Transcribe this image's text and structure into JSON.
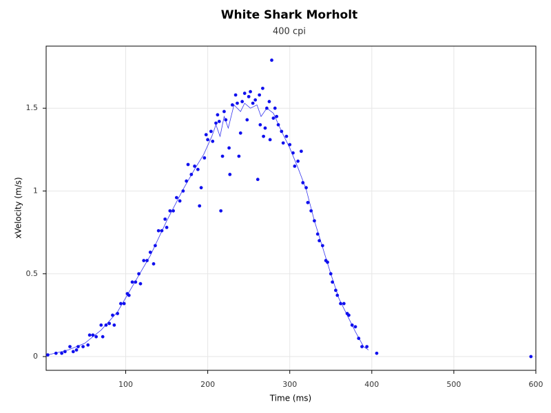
{
  "chart_data": {
    "type": "scatter",
    "title": "White Shark Morholt",
    "subtitle": "400 cpi",
    "x_label": "Time (ms)",
    "y_label": "xVelocity (m/s)",
    "xlim": [
      3,
      600
    ],
    "ylim": [
      -0.083,
      1.875
    ],
    "xticks": [
      100,
      200,
      300,
      400,
      500,
      600
    ],
    "yticks": [
      0,
      0.5,
      1,
      1.5
    ],
    "grid": true,
    "series": [
      {
        "type": "line",
        "color": "#3333ee",
        "x": [
          5,
          30,
          50,
          70,
          90,
          110,
          130,
          150,
          170,
          185,
          195,
          205,
          210,
          215,
          220,
          225,
          232,
          240,
          245,
          252,
          260,
          265,
          272,
          280,
          290,
          300,
          310,
          320,
          330,
          340,
          350,
          360,
          370,
          380,
          390,
          396
        ],
        "values": [
          0.01,
          0.04,
          0.08,
          0.16,
          0.27,
          0.44,
          0.61,
          0.82,
          1.01,
          1.14,
          1.22,
          1.33,
          1.4,
          1.33,
          1.45,
          1.38,
          1.52,
          1.48,
          1.53,
          1.5,
          1.52,
          1.45,
          1.5,
          1.47,
          1.36,
          1.26,
          1.14,
          1.01,
          0.82,
          0.66,
          0.5,
          0.35,
          0.25,
          0.15,
          0.06,
          0.04
        ]
      },
      {
        "type": "scatter",
        "color": "#1010ee",
        "x": [
          5,
          15,
          22,
          26,
          32,
          36,
          40,
          42,
          48,
          54,
          56,
          60,
          64,
          70,
          72,
          76,
          80,
          84,
          86,
          90,
          94,
          98,
          102,
          104,
          108,
          112,
          116,
          118,
          122,
          126,
          130,
          134,
          136,
          140,
          144,
          148,
          150,
          154,
          158,
          162,
          166,
          170,
          174,
          176,
          180,
          184,
          188,
          190,
          192,
          196,
          198,
          200,
          204,
          206,
          210,
          212,
          214,
          216,
          218,
          220,
          222,
          226,
          227,
          230,
          234,
          236,
          238,
          240,
          242,
          245,
          248,
          250,
          252,
          255,
          258,
          261,
          263,
          264,
          267,
          268,
          270,
          272,
          275,
          276,
          278,
          280,
          282,
          284,
          286,
          290,
          292,
          296,
          300,
          304,
          306,
          310,
          314,
          316,
          320,
          322,
          326,
          330,
          334,
          336,
          340,
          344,
          346,
          350,
          352,
          356,
          358,
          362,
          366,
          370,
          372,
          376,
          380,
          384,
          388,
          394,
          406,
          594
        ],
        "values": [
          0.01,
          0.02,
          0.02,
          0.03,
          0.06,
          0.03,
          0.04,
          0.06,
          0.06,
          0.07,
          0.13,
          0.13,
          0.12,
          0.19,
          0.12,
          0.19,
          0.2,
          0.25,
          0.19,
          0.26,
          0.32,
          0.32,
          0.38,
          0.37,
          0.45,
          0.45,
          0.5,
          0.44,
          0.58,
          0.58,
          0.63,
          0.56,
          0.67,
          0.76,
          0.76,
          0.83,
          0.78,
          0.88,
          0.88,
          0.96,
          0.94,
          1.0,
          1.06,
          1.16,
          1.1,
          1.15,
          1.13,
          0.91,
          1.02,
          1.2,
          1.34,
          1.31,
          1.36,
          1.3,
          1.41,
          1.46,
          1.42,
          0.88,
          1.21,
          1.48,
          1.43,
          1.26,
          1.1,
          1.52,
          1.58,
          1.53,
          1.21,
          1.35,
          1.54,
          1.59,
          1.43,
          1.57,
          1.6,
          1.53,
          1.55,
          1.07,
          1.58,
          1.4,
          1.62,
          1.33,
          1.38,
          1.5,
          1.54,
          1.31,
          1.79,
          1.44,
          1.5,
          1.45,
          1.4,
          1.36,
          1.29,
          1.33,
          1.28,
          1.23,
          1.15,
          1.18,
          1.24,
          1.05,
          1.02,
          0.93,
          0.88,
          0.82,
          0.74,
          0.7,
          0.67,
          0.58,
          0.57,
          0.5,
          0.45,
          0.4,
          0.37,
          0.32,
          0.32,
          0.26,
          0.25,
          0.19,
          0.18,
          0.11,
          0.06,
          0.06,
          0.02,
          0.0
        ]
      }
    ]
  }
}
